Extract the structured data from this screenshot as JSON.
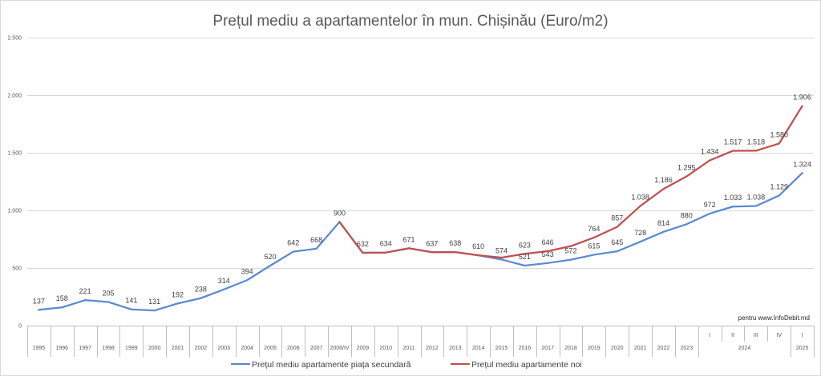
{
  "chart_data": {
    "type": "line",
    "title": "Prețul mediu a apartamentelor în mun. Chișinău (Euro/m2)",
    "ylim": [
      0,
      2500
    ],
    "y_ticks": [
      0,
      500,
      1000,
      1500,
      2000,
      2500
    ],
    "y_tick_labels": [
      "0",
      "500",
      "1.000",
      "1.500",
      "2.000",
      "2.500"
    ],
    "grid": true,
    "legend_position": "bottom",
    "categories": [
      "1995",
      "1996",
      "1997",
      "1998",
      "1999",
      "2000",
      "2001",
      "2002",
      "2003",
      "2004",
      "2005",
      "2006",
      "2007",
      "2008/IV",
      "2009",
      "2010",
      "2011",
      "2012",
      "2013",
      "2014",
      "2015",
      "2016",
      "2017",
      "2018",
      "2019",
      "2020",
      "2021",
      "2022",
      "2023",
      "I",
      "II",
      "III",
      "IV",
      "I"
    ],
    "x_groups": [
      {
        "label": "2024",
        "start": 29,
        "end": 32
      },
      {
        "label": "2025",
        "start": 33,
        "end": 33
      }
    ],
    "series": [
      {
        "name": "Prețul mediu apartamente piața secundară",
        "color": "#5a8ad1",
        "values": [
          137,
          158,
          221,
          205,
          141,
          131,
          192,
          238,
          314,
          394,
          520,
          642,
          668,
          900,
          632,
          634,
          671,
          637,
          638,
          610,
          574,
          521,
          543,
          572,
          615,
          645,
          728,
          814,
          880,
          972,
          1033,
          1038,
          1129,
          1324
        ],
        "data_labels": [
          "137",
          "158",
          "221",
          "205",
          "141",
          "131",
          "192",
          "238",
          "314",
          "394",
          "520",
          "642",
          "668",
          "900",
          "632",
          "634",
          "671",
          "637",
          "638",
          "610",
          "574",
          "521",
          "543",
          "572",
          "615",
          "645",
          "728",
          "814",
          "880",
          "972",
          "1.033",
          "1.038",
          "1.129",
          "1.324"
        ]
      },
      {
        "name": "Prețul mediu apartamente noi",
        "color": "#c0504d",
        "values": [
          null,
          null,
          null,
          null,
          null,
          null,
          null,
          null,
          null,
          null,
          null,
          null,
          null,
          900,
          632,
          634,
          671,
          637,
          638,
          610,
          590,
          623,
          646,
          690,
          764,
          857,
          1038,
          1186,
          1295,
          1434,
          1517,
          1518,
          1580,
          1906
        ],
        "data_labels": [
          null,
          null,
          null,
          null,
          null,
          null,
          null,
          null,
          null,
          null,
          null,
          null,
          null,
          null,
          null,
          null,
          null,
          null,
          null,
          null,
          null,
          "623",
          "646",
          null,
          "764",
          "857",
          "1.038",
          "1.186",
          "1.295",
          "1.434",
          "1.517",
          "1.518",
          "1.580",
          "1.906"
        ]
      }
    ],
    "annotation": "pentru www.InfoDebit.md"
  }
}
